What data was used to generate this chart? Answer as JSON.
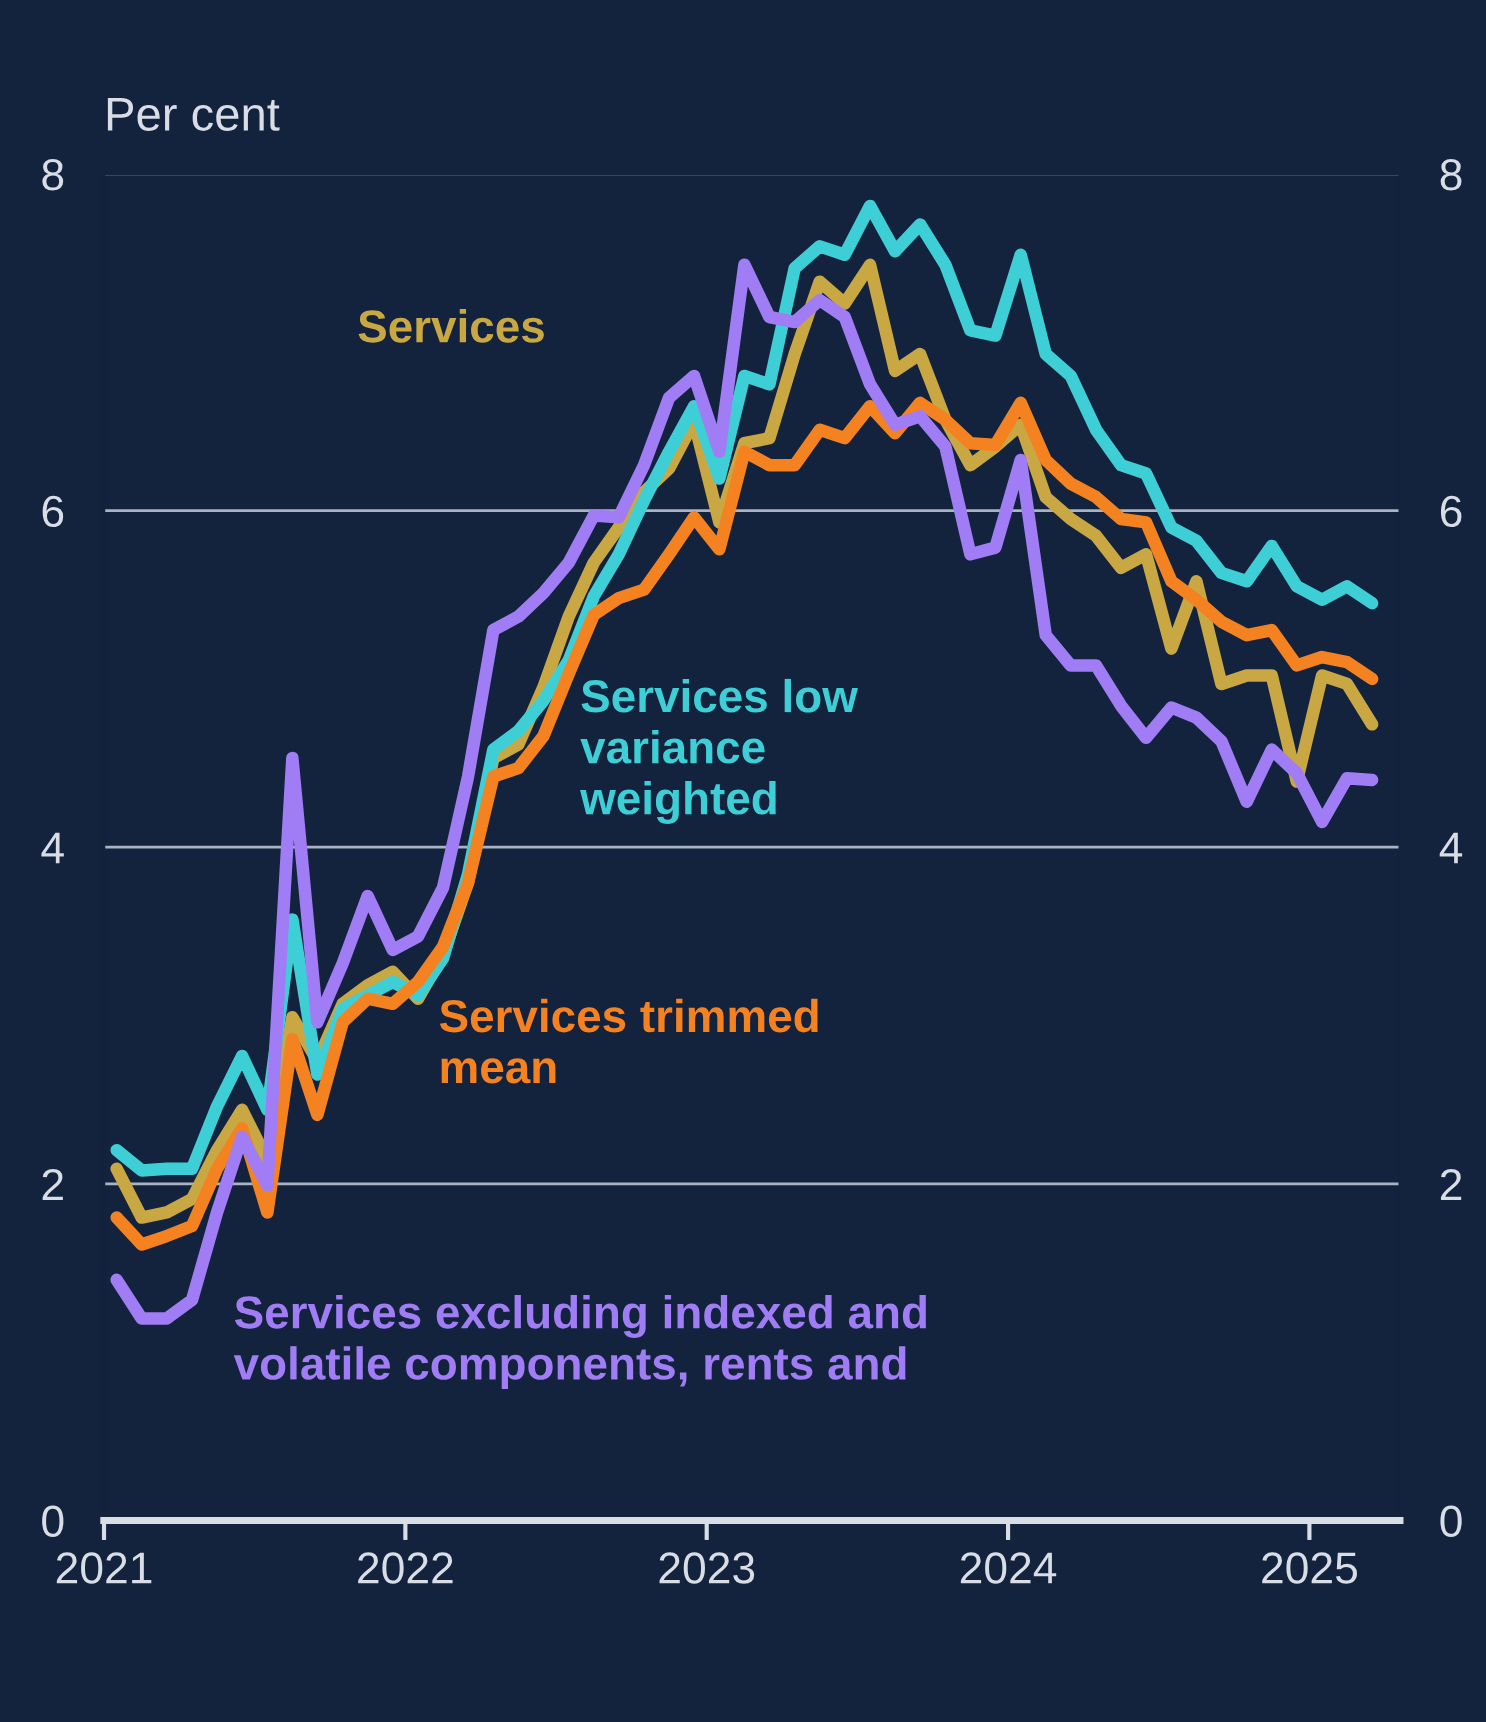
{
  "chart_data": {
    "type": "line",
    "ylabel": "Per cent",
    "x": [
      2021.042,
      2021.125,
      2021.208,
      2021.292,
      2021.375,
      2021.458,
      2021.542,
      2021.625,
      2021.708,
      2021.792,
      2021.875,
      2021.958,
      2022.042,
      2022.125,
      2022.208,
      2022.292,
      2022.375,
      2022.458,
      2022.542,
      2022.625,
      2022.708,
      2022.792,
      2022.875,
      2022.958,
      2023.042,
      2023.125,
      2023.208,
      2023.292,
      2023.375,
      2023.458,
      2023.542,
      2023.625,
      2023.708,
      2023.792,
      2023.875,
      2023.958,
      2024.042,
      2024.125,
      2024.208,
      2024.292,
      2024.375,
      2024.458,
      2024.542,
      2024.625,
      2024.708,
      2024.792,
      2024.875,
      2024.958,
      2025.042,
      2025.125,
      2025.208
    ],
    "series": [
      {
        "name": "Services",
        "color": "#c9a843",
        "values": [
          2.09,
          1.8,
          1.83,
          1.91,
          2.2,
          2.44,
          2.14,
          2.99,
          2.73,
          3.07,
          3.18,
          3.26,
          3.1,
          3.36,
          3.79,
          4.53,
          4.61,
          4.95,
          5.37,
          5.69,
          5.9,
          6.11,
          6.25,
          6.53,
          5.93,
          6.4,
          6.43,
          6.93,
          7.36,
          7.23,
          7.46,
          6.83,
          6.93,
          6.54,
          6.27,
          6.38,
          6.51,
          6.08,
          5.95,
          5.85,
          5.66,
          5.74,
          5.18,
          5.58,
          4.97,
          5.02,
          5.02,
          4.39,
          5.02,
          4.97,
          4.73
        ]
      },
      {
        "name": "Services low\nvariance\nweighted",
        "color": "#3ecfd6",
        "values": [
          2.2,
          2.08,
          2.09,
          2.09,
          2.46,
          2.76,
          2.44,
          3.57,
          2.65,
          3.04,
          3.12,
          3.2,
          3.12,
          3.34,
          3.84,
          4.58,
          4.69,
          4.87,
          5.11,
          5.49,
          5.74,
          6.06,
          6.35,
          6.62,
          6.19,
          6.8,
          6.75,
          7.44,
          7.57,
          7.52,
          7.81,
          7.54,
          7.7,
          7.46,
          7.07,
          7.04,
          7.52,
          6.93,
          6.8,
          6.48,
          6.27,
          6.22,
          5.9,
          5.82,
          5.63,
          5.58,
          5.79,
          5.55,
          5.47,
          5.55,
          5.45
        ]
      },
      {
        "name": "Services trimmed\nmean",
        "color": "#f58220",
        "values": [
          1.8,
          1.64,
          1.69,
          1.75,
          2.09,
          2.33,
          1.83,
          2.86,
          2.41,
          2.96,
          3.1,
          3.07,
          3.2,
          3.41,
          3.79,
          4.42,
          4.47,
          4.66,
          5.03,
          5.38,
          5.48,
          5.53,
          5.74,
          5.96,
          5.77,
          6.35,
          6.27,
          6.27,
          6.48,
          6.43,
          6.62,
          6.46,
          6.64,
          6.54,
          6.4,
          6.39,
          6.64,
          6.3,
          6.16,
          6.08,
          5.95,
          5.93,
          5.58,
          5.47,
          5.34,
          5.26,
          5.29,
          5.08,
          5.13,
          5.1,
          5.0
        ]
      },
      {
        "name": "Services excluding indexed and\nvolatile components, rents and",
        "color": "#a07cf5",
        "values": [
          1.43,
          1.2,
          1.2,
          1.31,
          1.83,
          2.28,
          1.99,
          4.53,
          2.96,
          3.31,
          3.71,
          3.39,
          3.47,
          3.76,
          4.42,
          5.29,
          5.37,
          5.51,
          5.69,
          5.97,
          5.96,
          6.27,
          6.67,
          6.8,
          6.35,
          7.46,
          7.15,
          7.12,
          7.25,
          7.15,
          6.75,
          6.51,
          6.56,
          6.38,
          5.74,
          5.78,
          6.3,
          5.26,
          5.08,
          5.08,
          4.84,
          4.65,
          4.83,
          4.77,
          4.63,
          4.27,
          4.58,
          4.44,
          4.15,
          4.41,
          4.4
        ]
      }
    ],
    "xlim": [
      2021,
      2025.3
    ],
    "xticks": [
      2021,
      2022,
      2023,
      2024,
      2025
    ],
    "ylim": [
      0,
      8
    ],
    "yticks": [
      0,
      2,
      4,
      6,
      8
    ],
    "y2lim": [
      0,
      8
    ],
    "y2ticks": [
      0,
      2,
      4,
      6,
      8
    ],
    "grid": "y",
    "legend": false,
    "line_style": "solid",
    "marker": "none"
  }
}
